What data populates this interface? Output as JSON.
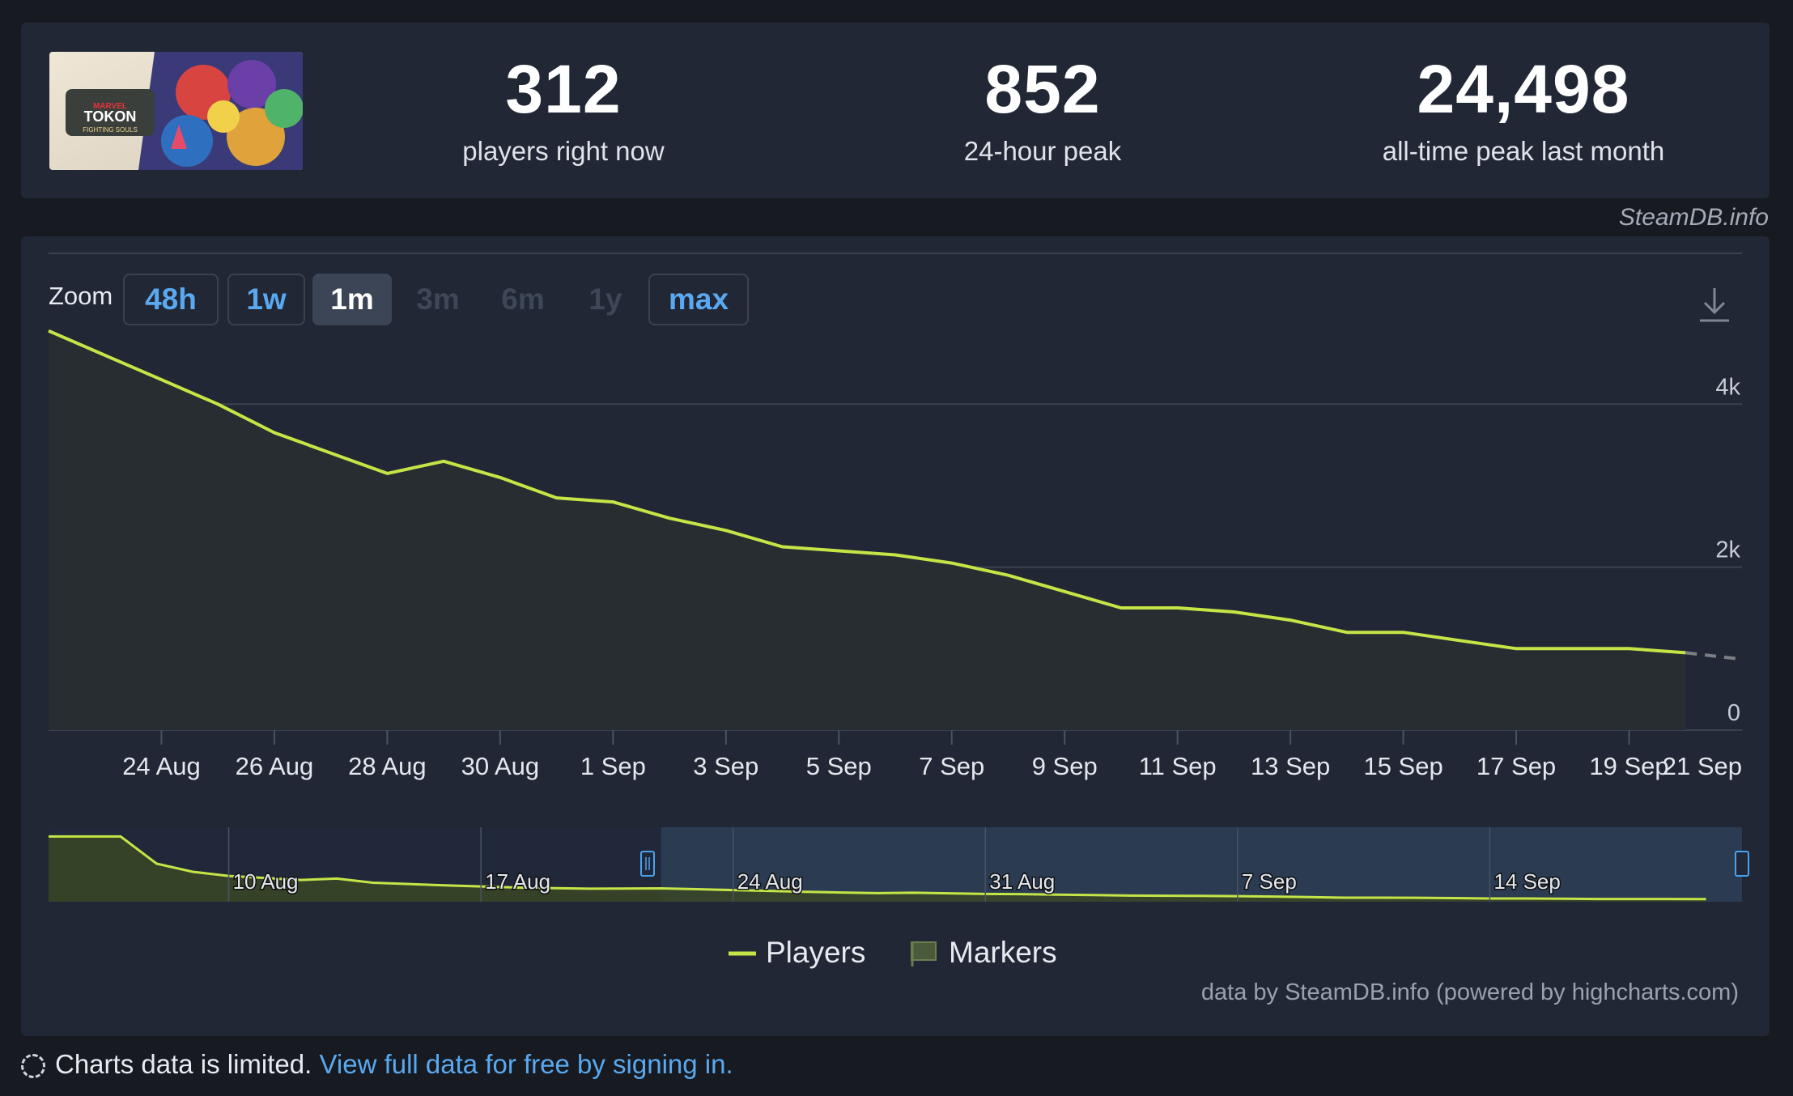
{
  "stats": {
    "current": {
      "value": "312",
      "label": "players right now"
    },
    "peak24": {
      "value": "852",
      "label": "24-hour peak"
    },
    "alltime": {
      "value": "24,498",
      "label": "all-time peak last month"
    }
  },
  "game_thumb": {
    "logo_text_1": "TOKON",
    "logo_text_2": "FIGHTING SOULS",
    "logo_text_3": "MARVEL"
  },
  "watermark": "SteamDB.info",
  "toolbar": {
    "zoom_label": "Zoom",
    "buttons": [
      {
        "label": "48h",
        "state": "enabled"
      },
      {
        "label": "1w",
        "state": "enabled"
      },
      {
        "label": "1m",
        "state": "active"
      },
      {
        "label": "3m",
        "state": "disabled"
      },
      {
        "label": "6m",
        "state": "disabled"
      },
      {
        "label": "1y",
        "state": "disabled"
      },
      {
        "label": "max",
        "state": "enabled"
      }
    ]
  },
  "chart_data": {
    "type": "area",
    "x_dates": [
      "22 Aug",
      "23 Aug",
      "24 Aug",
      "25 Aug",
      "26 Aug",
      "27 Aug",
      "28 Aug",
      "29 Aug",
      "30 Aug",
      "31 Aug",
      "1 Sep",
      "2 Sep",
      "3 Sep",
      "4 Sep",
      "5 Sep",
      "6 Sep",
      "7 Sep",
      "8 Sep",
      "9 Sep",
      "10 Sep",
      "11 Sep",
      "12 Sep",
      "13 Sep",
      "14 Sep",
      "15 Sep",
      "16 Sep",
      "17 Sep",
      "18 Sep",
      "19 Sep",
      "20 Sep"
    ],
    "series": [
      {
        "name": "Players",
        "values": [
          4900,
          4600,
          4300,
          4000,
          3650,
          3400,
          3150,
          3300,
          3100,
          2850,
          2800,
          2600,
          2450,
          2250,
          2200,
          2150,
          2050,
          1900,
          1700,
          1500,
          1500,
          1450,
          1350,
          1200,
          1200,
          1100,
          1000,
          1000,
          1000,
          950
        ],
        "color": "#c5e547"
      }
    ],
    "projected": {
      "from": {
        "x": "20 Sep",
        "y": 950
      },
      "to": {
        "x": "21 Sep",
        "y": 870
      }
    },
    "x_ticks": [
      "24 Aug",
      "26 Aug",
      "28 Aug",
      "30 Aug",
      "1 Sep",
      "3 Sep",
      "5 Sep",
      "7 Sep",
      "9 Sep",
      "11 Sep",
      "13 Sep",
      "15 Sep",
      "17 Sep",
      "19 Sep",
      "21 Sep"
    ],
    "y_ticks": [
      "0",
      "2k",
      "4k"
    ],
    "ylim": [
      0,
      5900
    ],
    "grid": true,
    "legend": [
      {
        "label": "Players",
        "kind": "line"
      },
      {
        "label": "Markers",
        "kind": "flag"
      }
    ],
    "legend_placement": "bottom-center",
    "navigator": {
      "labels": [
        "10 Aug",
        "17 Aug",
        "24 Aug",
        "31 Aug",
        "7 Sep",
        "14 Sep"
      ],
      "selected_range": [
        "22 Aug",
        "21 Sep"
      ]
    },
    "credits": "data by SteamDB.info (powered by highcharts.com)"
  },
  "footer": {
    "note": "Charts data is limited.",
    "link": "View full data for free by signing in."
  }
}
